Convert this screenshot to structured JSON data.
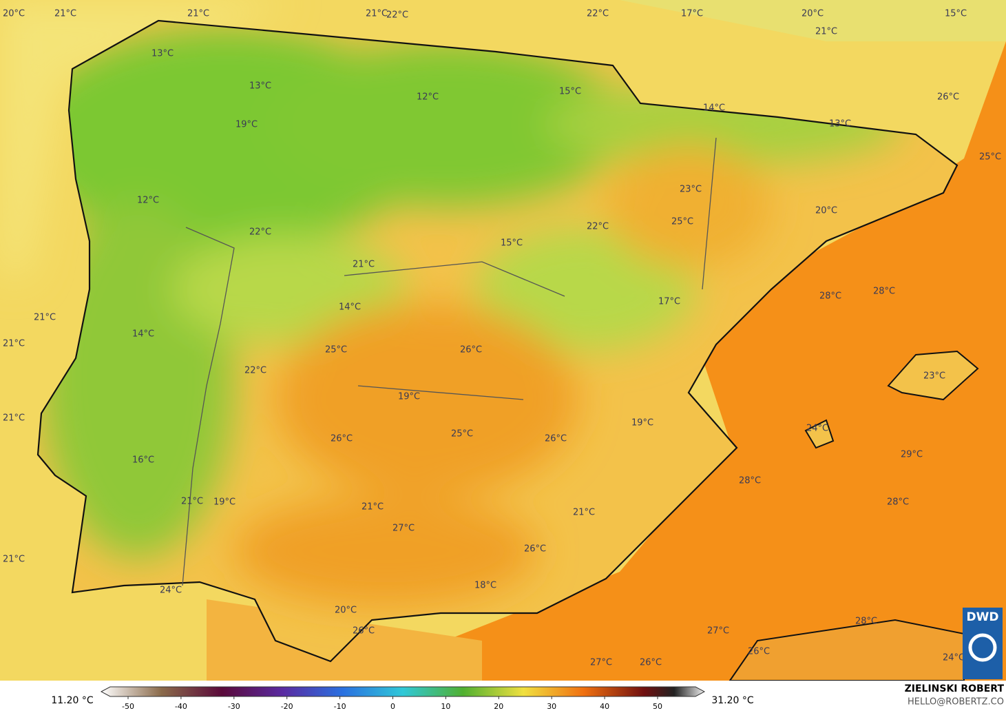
{
  "map": {
    "labels": [
      "20°C",
      "21°C",
      "21°C",
      "21°C",
      "22°C",
      "22°C",
      "17°C",
      "20°C",
      "15°C",
      "21°C",
      "13°C",
      "13°C",
      "12°C",
      "15°C",
      "14°C",
      "13°C",
      "26°C",
      "19°C",
      "25°C",
      "23°C",
      "12°C",
      "20°C",
      "25°C",
      "22°C",
      "22°C",
      "15°C",
      "21°C",
      "28°C",
      "28°C",
      "17°C",
      "21°C",
      "14°C",
      "14°C",
      "21°C",
      "25°C",
      "26°C",
      "22°C",
      "23°C",
      "19°C",
      "21°C",
      "19°C",
      "24°C",
      "26°C",
      "25°C",
      "26°C",
      "29°C",
      "16°C",
      "28°C",
      "21°C",
      "19°C",
      "28°C",
      "21°C",
      "21°C",
      "27°C",
      "26°C",
      "21°C",
      "18°C",
      "24°C",
      "20°C",
      "28°C",
      "27°C",
      "26°C",
      "26°C",
      "27°C",
      "26°C",
      "24°C"
    ]
  },
  "colorbar": {
    "min_label": "11.20 °C",
    "max_label": "31.20 °C",
    "ticks": [
      -50,
      -40,
      -30,
      -20,
      -10,
      0,
      10,
      20,
      30,
      40,
      50
    ]
  },
  "credit": {
    "author": "ZIELINSKI ROBERT",
    "contact": "HELLO@ROBERTZ.CO",
    "logo": "DWD"
  }
}
